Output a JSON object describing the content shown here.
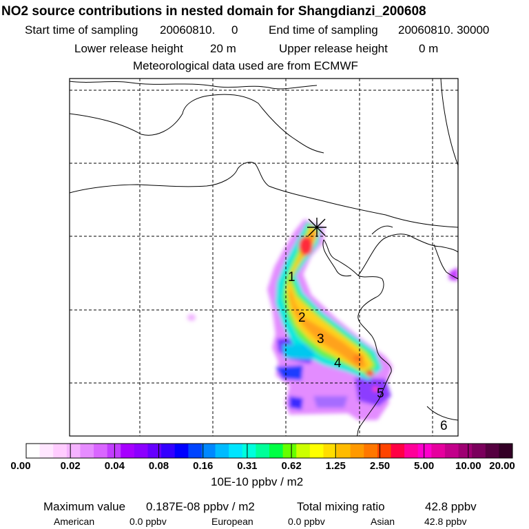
{
  "header": {
    "title": "NO2 source contributions in nested domain for Shangdianzi_200608",
    "start_label": "Start time of sampling",
    "start_value": "20060810.     0",
    "end_label": "End time of sampling",
    "end_value": "20060810. 30000",
    "lower_label": "Lower release height",
    "lower_value": "20 m",
    "upper_label": "Upper release height",
    "upper_value": "0 m",
    "met": "Meteorological data used are from ECMWF"
  },
  "map": {
    "station_marker": "star-cross-icon",
    "day_labels": [
      "1",
      "2",
      "3",
      "4",
      "5",
      "6"
    ]
  },
  "colorbar": {
    "tick_labels": [
      "0.00",
      "0.02",
      "0.04",
      "0.08",
      "0.16",
      "0.31",
      "0.62",
      "1.25",
      "2.50",
      "5.00",
      "10.00",
      "20.00"
    ],
    "unit": "10E-10 ppbv / m2",
    "colors": [
      "#ffffff",
      "#ffe6ff",
      "#ffccff",
      "#f5b3ff",
      "#e68cff",
      "#d966ff",
      "#c23dff",
      "#a600ff",
      "#8c00ff",
      "#6600ff",
      "#3300ff",
      "#0000ff",
      "#0044ff",
      "#0088ff",
      "#00bbff",
      "#00e5ff",
      "#00ffdd",
      "#00ff99",
      "#00ff44",
      "#66ff00",
      "#ccff00",
      "#ffff00",
      "#ffdd00",
      "#ffbb00",
      "#ff9900",
      "#ff7700",
      "#ff4400",
      "#ff0044",
      "#ff0099",
      "#ff00cc",
      "#e6009e",
      "#c2008a",
      "#9e0072",
      "#7a005c",
      "#550040",
      "#330026"
    ]
  },
  "footer": {
    "max_label": "Maximum value",
    "max_value": "0.187E-08 ppbv / m2",
    "total_label": "Total mixing ratio",
    "total_value": "42.8 ppbv",
    "american_label": "American",
    "american_value": "0.0 ppbv",
    "european_label": "European",
    "european_value": "0.0 ppbv",
    "asian_label": "Asian",
    "asian_value": "42.8 ppbv"
  }
}
